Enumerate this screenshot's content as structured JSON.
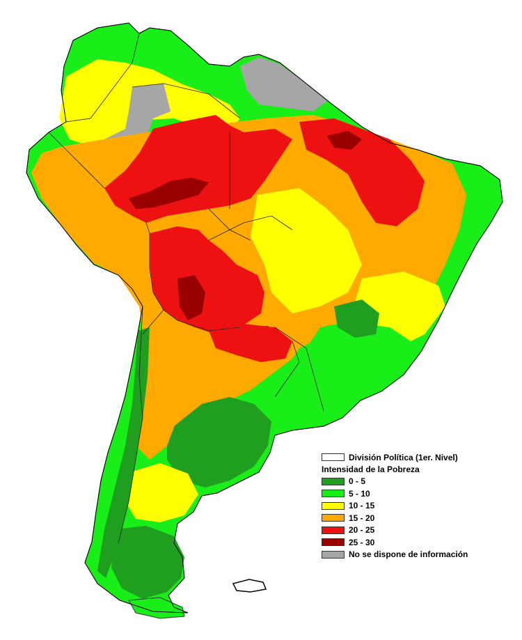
{
  "legend": {
    "boundary_label": "División Política (1er. Nivel)",
    "title": "Intensidad de la Pobreza",
    "classes": [
      {
        "label": "0 - 5",
        "color": "#1f9e1f"
      },
      {
        "label": "5 - 10",
        "color": "#19ee19"
      },
      {
        "label": "10 - 15",
        "color": "#ffff00"
      },
      {
        "label": "15 - 20",
        "color": "#ffaa00"
      },
      {
        "label": "20 - 25",
        "color": "#ee1111"
      },
      {
        "label": "25 - 30",
        "color": "#990000"
      },
      {
        "label": "No se dispone de información",
        "color": "#a6a6a6"
      }
    ]
  }
}
